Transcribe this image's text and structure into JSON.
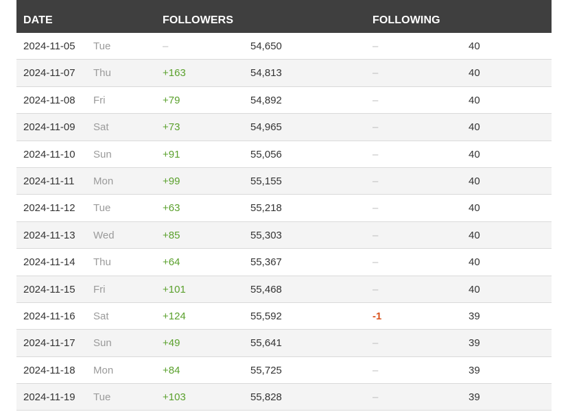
{
  "header": {
    "date": "DATE",
    "followers": "FOLLOWERS",
    "following": "FOLLOWING"
  },
  "colors": {
    "header_bg": "#3f3f3f",
    "positive": "#5aa02c",
    "negative": "#d9531e",
    "muted": "#bdbdbd"
  },
  "rows": [
    {
      "date": "2024-11-05",
      "day": "Tue",
      "followers_change": "–",
      "followers": "54,650",
      "following_change": "–",
      "following": "40"
    },
    {
      "date": "2024-11-07",
      "day": "Thu",
      "followers_change": "+163",
      "followers": "54,813",
      "following_change": "–",
      "following": "40"
    },
    {
      "date": "2024-11-08",
      "day": "Fri",
      "followers_change": "+79",
      "followers": "54,892",
      "following_change": "–",
      "following": "40"
    },
    {
      "date": "2024-11-09",
      "day": "Sat",
      "followers_change": "+73",
      "followers": "54,965",
      "following_change": "–",
      "following": "40"
    },
    {
      "date": "2024-11-10",
      "day": "Sun",
      "followers_change": "+91",
      "followers": "55,056",
      "following_change": "–",
      "following": "40"
    },
    {
      "date": "2024-11-11",
      "day": "Mon",
      "followers_change": "+99",
      "followers": "55,155",
      "following_change": "–",
      "following": "40"
    },
    {
      "date": "2024-11-12",
      "day": "Tue",
      "followers_change": "+63",
      "followers": "55,218",
      "following_change": "–",
      "following": "40"
    },
    {
      "date": "2024-11-13",
      "day": "Wed",
      "followers_change": "+85",
      "followers": "55,303",
      "following_change": "–",
      "following": "40"
    },
    {
      "date": "2024-11-14",
      "day": "Thu",
      "followers_change": "+64",
      "followers": "55,367",
      "following_change": "–",
      "following": "40"
    },
    {
      "date": "2024-11-15",
      "day": "Fri",
      "followers_change": "+101",
      "followers": "55,468",
      "following_change": "–",
      "following": "40"
    },
    {
      "date": "2024-11-16",
      "day": "Sat",
      "followers_change": "+124",
      "followers": "55,592",
      "following_change": "-1",
      "following": "39"
    },
    {
      "date": "2024-11-17",
      "day": "Sun",
      "followers_change": "+49",
      "followers": "55,641",
      "following_change": "–",
      "following": "39"
    },
    {
      "date": "2024-11-18",
      "day": "Mon",
      "followers_change": "+84",
      "followers": "55,725",
      "following_change": "–",
      "following": "39"
    },
    {
      "date": "2024-11-19",
      "day": "Tue",
      "followers_change": "+103",
      "followers": "55,828",
      "following_change": "–",
      "following": "39"
    }
  ]
}
